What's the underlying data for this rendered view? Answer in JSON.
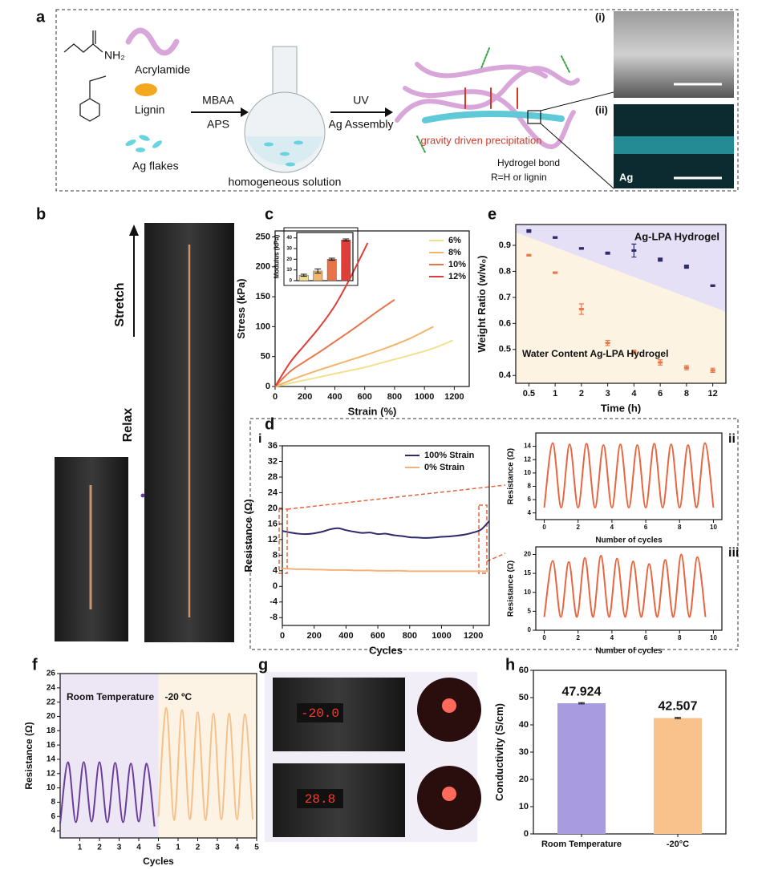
{
  "panels": [
    "a",
    "b",
    "c",
    "d",
    "e",
    "f",
    "g",
    "h"
  ],
  "schematic": {
    "reagents": [
      "Acrylamide",
      "Lignin",
      "Ag flakes"
    ],
    "step1": [
      "MBAA",
      "APS"
    ],
    "step2": [
      "UV",
      "Ag Assembly"
    ],
    "solution": "homogeneous solution",
    "precipitation": "gravity driven precipitation",
    "bond": "Hydrogel bond",
    "r_group": "R=H or lignin",
    "amine": "NH₂"
  },
  "micrographs": {
    "labels": [
      "(i)",
      "(ii)"
    ],
    "element": "Ag"
  },
  "photos": {
    "stretch": "Stretch",
    "relax": "Relax",
    "displays": [
      "-20.0",
      "28.8"
    ]
  },
  "chart_data": [
    {
      "type": "line",
      "xlabel": "Strain (%)",
      "ylabel": "Stress (kPa)",
      "xlim": [
        0,
        1300
      ],
      "xticks": [
        0,
        200,
        400,
        600,
        800,
        1000,
        1200
      ],
      "ylim": [
        0,
        260
      ],
      "yticks": [
        0,
        50,
        100,
        150,
        200,
        250
      ],
      "legend": "upper right",
      "series": [
        {
          "name": "6%",
          "color": "#f2e08f",
          "x": [
            0,
            150,
            300,
            450,
            600,
            750,
            900,
            1050,
            1190
          ],
          "values": [
            0,
            8,
            16,
            24,
            32,
            42,
            52,
            63,
            77
          ]
        },
        {
          "name": "8%",
          "color": "#f3b46c",
          "x": [
            0,
            150,
            300,
            450,
            600,
            750,
            900,
            1060
          ],
          "values": [
            0,
            15,
            28,
            40,
            52,
            65,
            80,
            100
          ]
        },
        {
          "name": "10%",
          "color": "#e9744a",
          "x": [
            0,
            100,
            200,
            300,
            400,
            500,
            600,
            700,
            800
          ],
          "values": [
            0,
            25,
            42,
            58,
            75,
            92,
            110,
            128,
            145
          ]
        },
        {
          "name": "12%",
          "color": "#df3d37",
          "x": [
            0,
            100,
            200,
            300,
            400,
            500,
            620
          ],
          "values": [
            0,
            40,
            70,
            100,
            135,
            180,
            240
          ]
        }
      ]
    },
    {
      "type": "scatter",
      "xlabel": "Time (h)",
      "ylabel": "Weight Ratio (w/w₀)",
      "categories": [
        "0.5",
        "1",
        "2",
        "3",
        "4",
        "6",
        "8",
        "12"
      ],
      "ylim": [
        0.37,
        0.98
      ],
      "yticks": [
        0.4,
        0.5,
        0.6,
        0.7,
        0.8,
        0.9
      ],
      "region_colors": [
        "#e6e0f6",
        "#fdf3e3"
      ],
      "series": [
        {
          "name": "Ag-LPA Hydrogel",
          "color": "#2e2a6b",
          "values": [
            0.955,
            0.93,
            0.888,
            0.87,
            0.88,
            0.845,
            0.818,
            0.745
          ],
          "errors": [
            0.005,
            0.003,
            0.003,
            0.004,
            0.025,
            0.006,
            0.006,
            0.003
          ]
        },
        {
          "name": "Water Content Ag-LPA Hydrogel",
          "color": "#e8794a",
          "values": [
            0.862,
            0.795,
            0.655,
            0.525,
            0.49,
            0.45,
            0.43,
            0.42
          ],
          "errors": [
            0.003,
            0.003,
            0.02,
            0.01,
            0.007,
            0.01,
            0.008,
            0.008
          ]
        }
      ]
    },
    {
      "type": "line",
      "panel": "i",
      "xlabel": "Cycles",
      "ylabel": "Resistance (Ω)",
      "xlim": [
        0,
        1300
      ],
      "xticks": [
        0,
        200,
        400,
        600,
        800,
        1000,
        1200
      ],
      "ylim": [
        -10,
        36
      ],
      "yticks": [
        -8,
        -4,
        0,
        4,
        8,
        12,
        16,
        20,
        24,
        28,
        32,
        36
      ],
      "legend": "upper right",
      "x": [
        0,
        50,
        100,
        150,
        200,
        250,
        300,
        350,
        400,
        450,
        500,
        550,
        600,
        650,
        700,
        750,
        800,
        850,
        900,
        950,
        1000,
        1050,
        1100,
        1150,
        1200,
        1250,
        1300
      ],
      "series": [
        {
          "name": "100% Strain",
          "color": "#2e2a6b",
          "values": [
            14.2,
            13.8,
            13.5,
            13.4,
            13.6,
            14.0,
            14.6,
            14.9,
            14.4,
            14.0,
            13.7,
            13.8,
            13.4,
            13.5,
            13.1,
            12.9,
            12.6,
            12.5,
            12.4,
            12.5,
            12.7,
            12.8,
            13.0,
            13.3,
            13.8,
            14.6,
            16.8
          ]
        },
        {
          "name": "0% Strain",
          "color": "#f5b27a",
          "values": [
            4.6,
            4.5,
            4.4,
            4.4,
            4.3,
            4.3,
            4.2,
            4.2,
            4.2,
            4.1,
            4.1,
            4.1,
            4.0,
            4.0,
            4.0,
            4.0,
            3.9,
            3.9,
            3.9,
            3.9,
            3.9,
            3.9,
            3.9,
            3.9,
            3.9,
            3.9,
            3.9
          ]
        }
      ]
    },
    {
      "type": "line",
      "panel": "ii",
      "xlabel": "Number of cycles",
      "ylabel": "Resistance (Ω)",
      "xlim": [
        -0.5,
        10.5
      ],
      "xticks": [
        0,
        2,
        4,
        6,
        8,
        10
      ],
      "ylim": [
        3,
        16
      ],
      "yticks": [
        4,
        6,
        8,
        10,
        12,
        14
      ],
      "x": [
        0,
        0.5,
        1,
        1.5,
        2,
        2.5,
        3,
        3.5,
        4,
        4.5,
        5,
        5.5,
        6,
        6.5,
        7,
        7.5,
        8,
        8.5,
        9,
        9.5,
        10
      ],
      "series": [
        {
          "name": null,
          "color": "#e8663f",
          "values": [
            4.8,
            14.5,
            4.8,
            14.3,
            4.8,
            14.4,
            4.8,
            14.2,
            4.8,
            14.3,
            4.8,
            14.2,
            4.8,
            14.4,
            4.8,
            14.3,
            4.8,
            14.2,
            4.8,
            14.5,
            4.8
          ]
        }
      ]
    },
    {
      "type": "line",
      "panel": "iii",
      "xlabel": "Number of cycles",
      "ylabel": "Resistance (Ω)",
      "xlim": [
        -0.5,
        10.5
      ],
      "xticks": [
        0,
        2,
        4,
        6,
        8,
        10
      ],
      "ylim": [
        0,
        22
      ],
      "yticks": [
        0,
        5,
        10,
        15,
        20
      ],
      "x": [
        0,
        0.5,
        0.98,
        1.45,
        1.93,
        2.4,
        2.88,
        3.35,
        3.83,
        4.3,
        4.78,
        5.25,
        5.73,
        6.2,
        6.68,
        7.15,
        7.63,
        8.1,
        8.58,
        9.05,
        9.53
      ],
      "series": [
        {
          "name": null,
          "color": "#e8663f",
          "values": [
            3.5,
            18.3,
            3.5,
            18.0,
            3.5,
            19.1,
            3.5,
            19.7,
            3.5,
            18.9,
            3.5,
            18.2,
            3.5,
            17.5,
            3.5,
            18.6,
            3.5,
            20.0,
            3.5,
            19.3,
            3.5
          ]
        }
      ]
    },
    {
      "type": "line",
      "xlabel": "Cycles",
      "ylabel": "Resistance (Ω)",
      "xlim": [
        0,
        10
      ],
      "xticks": [
        1,
        2,
        3,
        4,
        5,
        {
          "value": 6,
          "label": "1"
        },
        {
          "value": 7,
          "label": "2"
        },
        {
          "value": 8,
          "label": "3"
        },
        {
          "value": 9,
          "label": "4"
        },
        {
          "value": 10,
          "label": "5"
        }
      ],
      "ylim": [
        3,
        26
      ],
      "yticks": [
        4,
        6,
        8,
        10,
        12,
        14,
        16,
        18,
        20,
        22,
        24,
        26
      ],
      "series": [
        {
          "name": "Room Temperature",
          "color": "#6a3d9a",
          "shade": "#ece6f5",
          "x": [
            0,
            0.4,
            0.8,
            1.2,
            1.6,
            2.0,
            2.4,
            2.8,
            3.2,
            3.6,
            4.0,
            4.4,
            4.8
          ],
          "values": [
            5,
            13.6,
            5.2,
            13.6,
            5.3,
            13.6,
            5.2,
            13.5,
            5.2,
            13.4,
            5.3,
            13.4,
            4.6
          ]
        },
        {
          "name": "-20 ºC",
          "color": "#f5c08a",
          "shade": "#fdf3e4",
          "x": [
            5,
            5.4,
            5.8,
            6.2,
            6.6,
            7.0,
            7.4,
            7.8,
            8.2,
            8.6,
            9.0,
            9.4,
            9.8
          ],
          "values": [
            6,
            21.2,
            5.5,
            20.9,
            5.6,
            20.6,
            5.5,
            20.4,
            5.6,
            20.4,
            5.6,
            20.3,
            5.6
          ]
        }
      ]
    },
    {
      "type": "bar",
      "ylabel": "Conductivity (S/cm)",
      "categories": [
        "Room Temperature",
        "-20°C"
      ],
      "values": [
        47.924,
        42.507
      ],
      "errors": [
        0.25,
        0.2
      ],
      "colors": [
        "#a89bdf",
        "#f9c18b"
      ],
      "data_labels": true,
      "ylim": [
        0,
        60
      ],
      "yticks": [
        0,
        10,
        20,
        30,
        40,
        50,
        60
      ]
    },
    {
      "type": "bar",
      "ylabel": "Modulus (kPa)",
      "values": [
        5,
        9,
        20,
        38
      ],
      "errors": [
        1,
        2,
        1,
        1
      ],
      "colors": [
        "#f2e08f",
        "#f3b46c",
        "#e9744a",
        "#df3d37"
      ],
      "ylim": [
        0,
        45
      ],
      "yticks": [
        0,
        10,
        20,
        30,
        40
      ]
    }
  ]
}
